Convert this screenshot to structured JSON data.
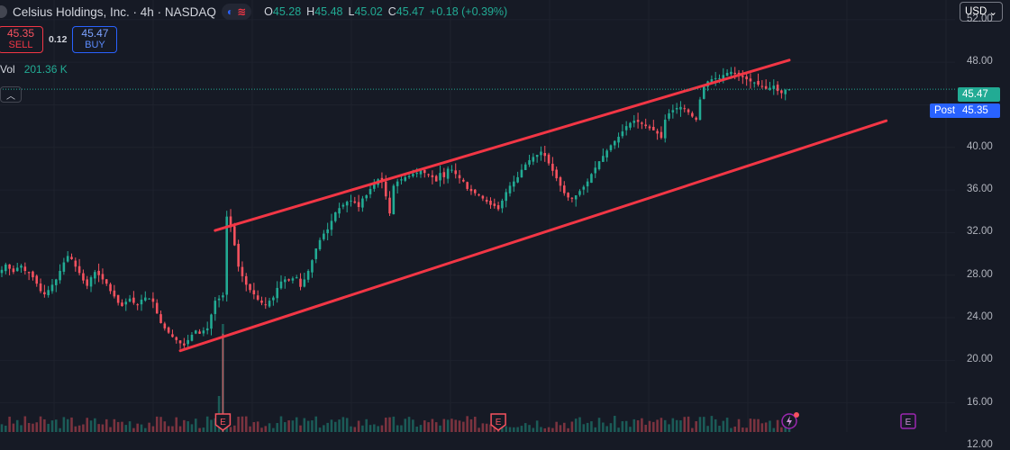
{
  "header": {
    "symbol_title": "Celsius Holdings, Inc. · 4h · NASDAQ",
    "ohlc": [
      {
        "key": "O",
        "value": "45.28"
      },
      {
        "key": "H",
        "value": "45.48"
      },
      {
        "key": "L",
        "value": "45.02"
      },
      {
        "key": "C",
        "value": "45.47"
      },
      {
        "key": "",
        "value": "+0.18 (+0.39%)"
      }
    ]
  },
  "trade": {
    "sell_price": "45.35",
    "sell_label": "SELL",
    "spread": "0.12",
    "buy_price": "45.47",
    "buy_label": "BUY"
  },
  "volume": {
    "label": "Vol",
    "value": "201.36 K"
  },
  "currency": "USD",
  "price_tags": {
    "last": "45.47",
    "post_label": "Post",
    "post": "45.35"
  },
  "colors": {
    "background": "#161a25",
    "up": "#22ab94",
    "down": "#f7525f",
    "trendline": "#f23645",
    "last_price_line": "#22ab94",
    "grid": "#1e222d"
  },
  "event_markers": [
    {
      "label": "E",
      "index": 57
    },
    {
      "label": "E",
      "index": 128
    },
    {
      "label": "E",
      "index": 219,
      "style": "outline-purple"
    }
  ],
  "chart_data": {
    "type": "candlestick",
    "title": "Celsius Holdings, Inc. · 4h · NASDAQ",
    "ylabel": "",
    "ylim": [
      12,
      53
    ],
    "y_ticks": [
      52,
      48,
      44,
      40,
      36,
      32,
      28,
      24,
      20,
      16,
      12
    ],
    "y_tick_labels": [
      "52.00",
      "48.00",
      "",
      "40.00",
      "36.00",
      "32.00",
      "28.00",
      "24.00",
      "20.00",
      "16.00",
      "12.00"
    ],
    "last_price": 45.47,
    "post_price": 45.35,
    "close_series": [
      28.5,
      29.0,
      28.6,
      28.3,
      28.7,
      28.9,
      28.4,
      28.2,
      27.8,
      27.2,
      26.5,
      26.2,
      26.6,
      27.1,
      27.6,
      28.4,
      29.2,
      29.8,
      29.5,
      28.8,
      28.2,
      27.5,
      27.0,
      27.8,
      28.3,
      28.0,
      27.6,
      27.2,
      26.5,
      26.0,
      25.4,
      25.1,
      25.5,
      25.8,
      25.4,
      25.2,
      25.7,
      25.9,
      25.8,
      25.5,
      24.4,
      23.5,
      23.0,
      22.6,
      22.2,
      21.9,
      21.6,
      21.4,
      21.9,
      22.4,
      22.8,
      22.5,
      22.8,
      23.0,
      24.3,
      25.6,
      25.8,
      26.1,
      33.5,
      32.5,
      30.8,
      28.8,
      27.9,
      27.1,
      26.6,
      26.2,
      25.7,
      25.4,
      25.2,
      25.6,
      25.9,
      26.8,
      27.4,
      27.6,
      27.5,
      27.7,
      27.8,
      26.9,
      27.6,
      28.4,
      29.4,
      30.5,
      31.3,
      31.9,
      32.3,
      33.1,
      33.9,
      34.3,
      34.6,
      34.9,
      35.0,
      34.8,
      34.4,
      35.2,
      35.5,
      36.1,
      36.6,
      37.0,
      36.8,
      35.4,
      33.8,
      36.4,
      36.8,
      37.0,
      37.2,
      37.3,
      37.5,
      37.6,
      37.9,
      37.6,
      37.4,
      37.2,
      36.8,
      37.6,
      37.2,
      38.0,
      37.9,
      37.5,
      37.1,
      36.8,
      36.1,
      35.9,
      35.7,
      35.5,
      35.2,
      34.9,
      34.6,
      34.5,
      34.2,
      35.0,
      35.8,
      36.4,
      36.8,
      37.2,
      37.9,
      38.4,
      38.8,
      39.1,
      39.3,
      39.6,
      39.2,
      38.5,
      37.8,
      37.1,
      36.4,
      35.7,
      35.3,
      35.2,
      35.5,
      35.9,
      36.3,
      36.8,
      37.5,
      38.1,
      38.7,
      39.2,
      39.7,
      40.2,
      40.6,
      41.0,
      41.5,
      42.0,
      42.3,
      42.5,
      42.4,
      42.2,
      42.0,
      41.8,
      41.6,
      41.3,
      40.9,
      42.6,
      43.2,
      43.5,
      43.7,
      43.8,
      43.6,
      43.3,
      42.9,
      42.6,
      44.5,
      45.8,
      46.2,
      46.4,
      46.5,
      46.5,
      46.8,
      47.0,
      47.1,
      46.9,
      46.7,
      46.6,
      46.4,
      46.2,
      46.1,
      45.9,
      45.7,
      45.5,
      45.6,
      45.8,
      45.3,
      45.1,
      45.4,
      45.47
    ],
    "volume_spike_index": 57
  }
}
